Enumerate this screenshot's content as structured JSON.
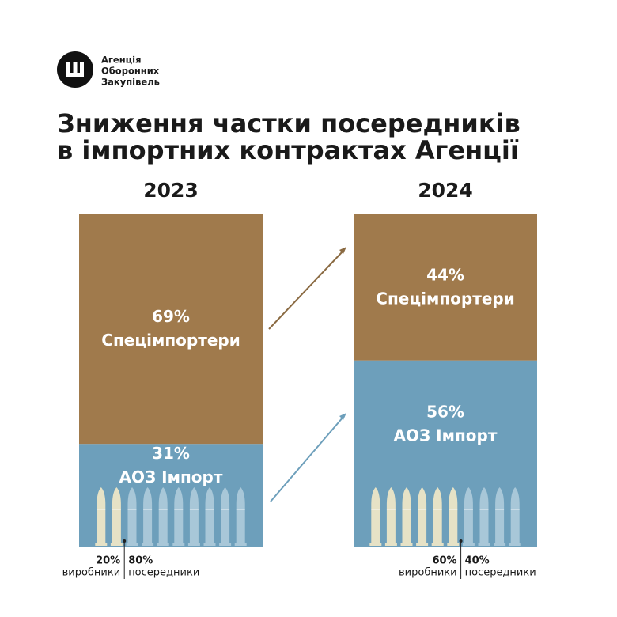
{
  "logo": {
    "lines": [
      "Агенція",
      "Оборонних",
      "Закупівель"
    ]
  },
  "chart_data": {
    "type": "stacked_bar",
    "title": [
      "Зниження частки посередників",
      "в імпортних контрактах Агенції"
    ],
    "categories": [
      "2023",
      "2024"
    ],
    "ylim": [
      0,
      100
    ],
    "series": [
      {
        "name": "Спецімпортери",
        "color": "#a07a4c",
        "values": [
          69,
          44
        ],
        "value_labels": [
          "69%",
          "44%"
        ]
      },
      {
        "name": "АОЗ Імпорт",
        "color": "#6d9fbb",
        "values": [
          31,
          56
        ],
        "value_labels": [
          "31%",
          "56%"
        ]
      }
    ],
    "breakdown": [
      [
        {
          "name": "виробники",
          "value": 20,
          "label": "20%",
          "color": "#e6e2c6"
        },
        {
          "name": "посередники",
          "value": 80,
          "label": "80%",
          "color": "#a8c7d8"
        }
      ],
      [
        {
          "name": "виробники",
          "value": 60,
          "label": "60%",
          "color": "#e6e2c6"
        },
        {
          "name": "посередники",
          "value": 40,
          "label": "40%",
          "color": "#a8c7d8"
        }
      ]
    ]
  }
}
